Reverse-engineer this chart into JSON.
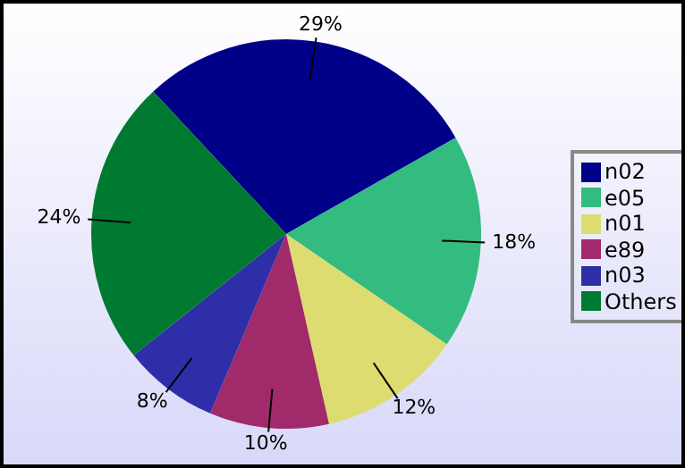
{
  "chart_data": {
    "type": "pie",
    "categories": [
      "n02",
      "e05",
      "n01",
      "e89",
      "n03",
      "Others"
    ],
    "values": [
      29,
      18,
      12,
      10,
      8,
      24
    ],
    "value_labels": [
      "29%",
      "18%",
      "12%",
      "10%",
      "8%",
      "24%"
    ],
    "colors": [
      "#000088",
      "#33bb80",
      "#dcdc70",
      "#a02a6a",
      "#2e2ea8",
      "#007a30"
    ],
    "legend": "right"
  }
}
